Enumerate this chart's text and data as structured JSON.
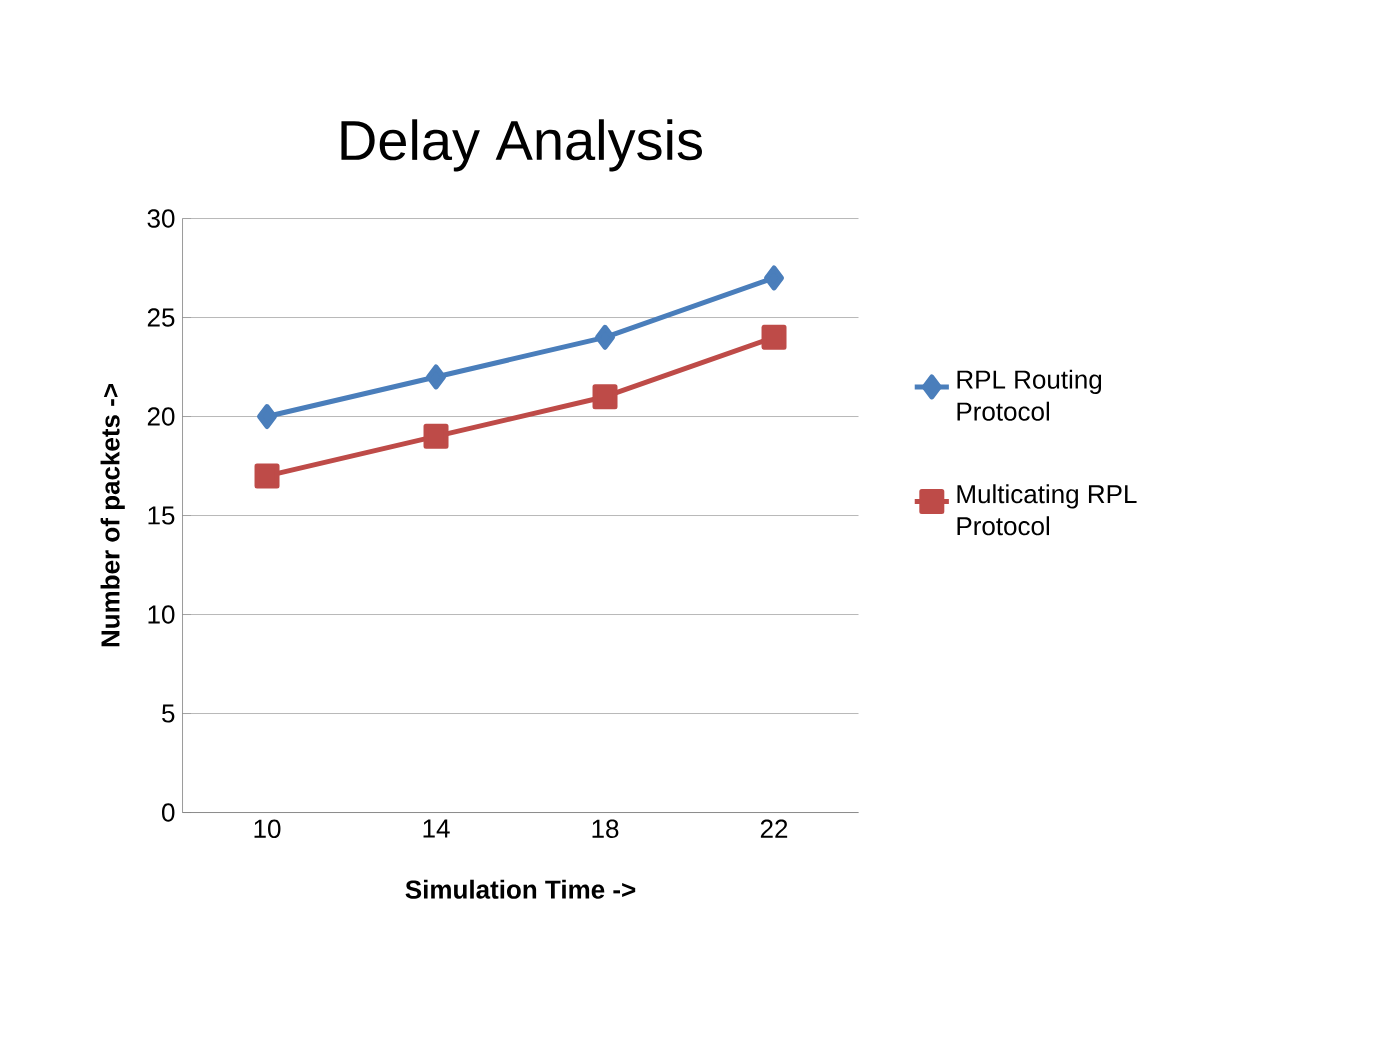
{
  "chart_data": {
    "type": "line",
    "title": "Delay Analysis",
    "xlabel": "Simulation Time ->",
    "ylabel": "Number of packets ->",
    "categories": [
      "10",
      "14",
      "18",
      "22"
    ],
    "series": [
      {
        "name": "RPL Routing Protocol",
        "color": "#4a7ebb",
        "marker": "diamond",
        "values": [
          20,
          22,
          24,
          27
        ]
      },
      {
        "name": "Multicating RPL Protocol",
        "color": "#be4b48",
        "marker": "square",
        "values": [
          17,
          19,
          21,
          24
        ]
      }
    ],
    "ylim": [
      0,
      30
    ],
    "yticks": [
      0,
      5,
      10,
      15,
      20,
      25,
      30
    ],
    "grid": "y",
    "legend": "right",
    "line_style": "solid"
  }
}
